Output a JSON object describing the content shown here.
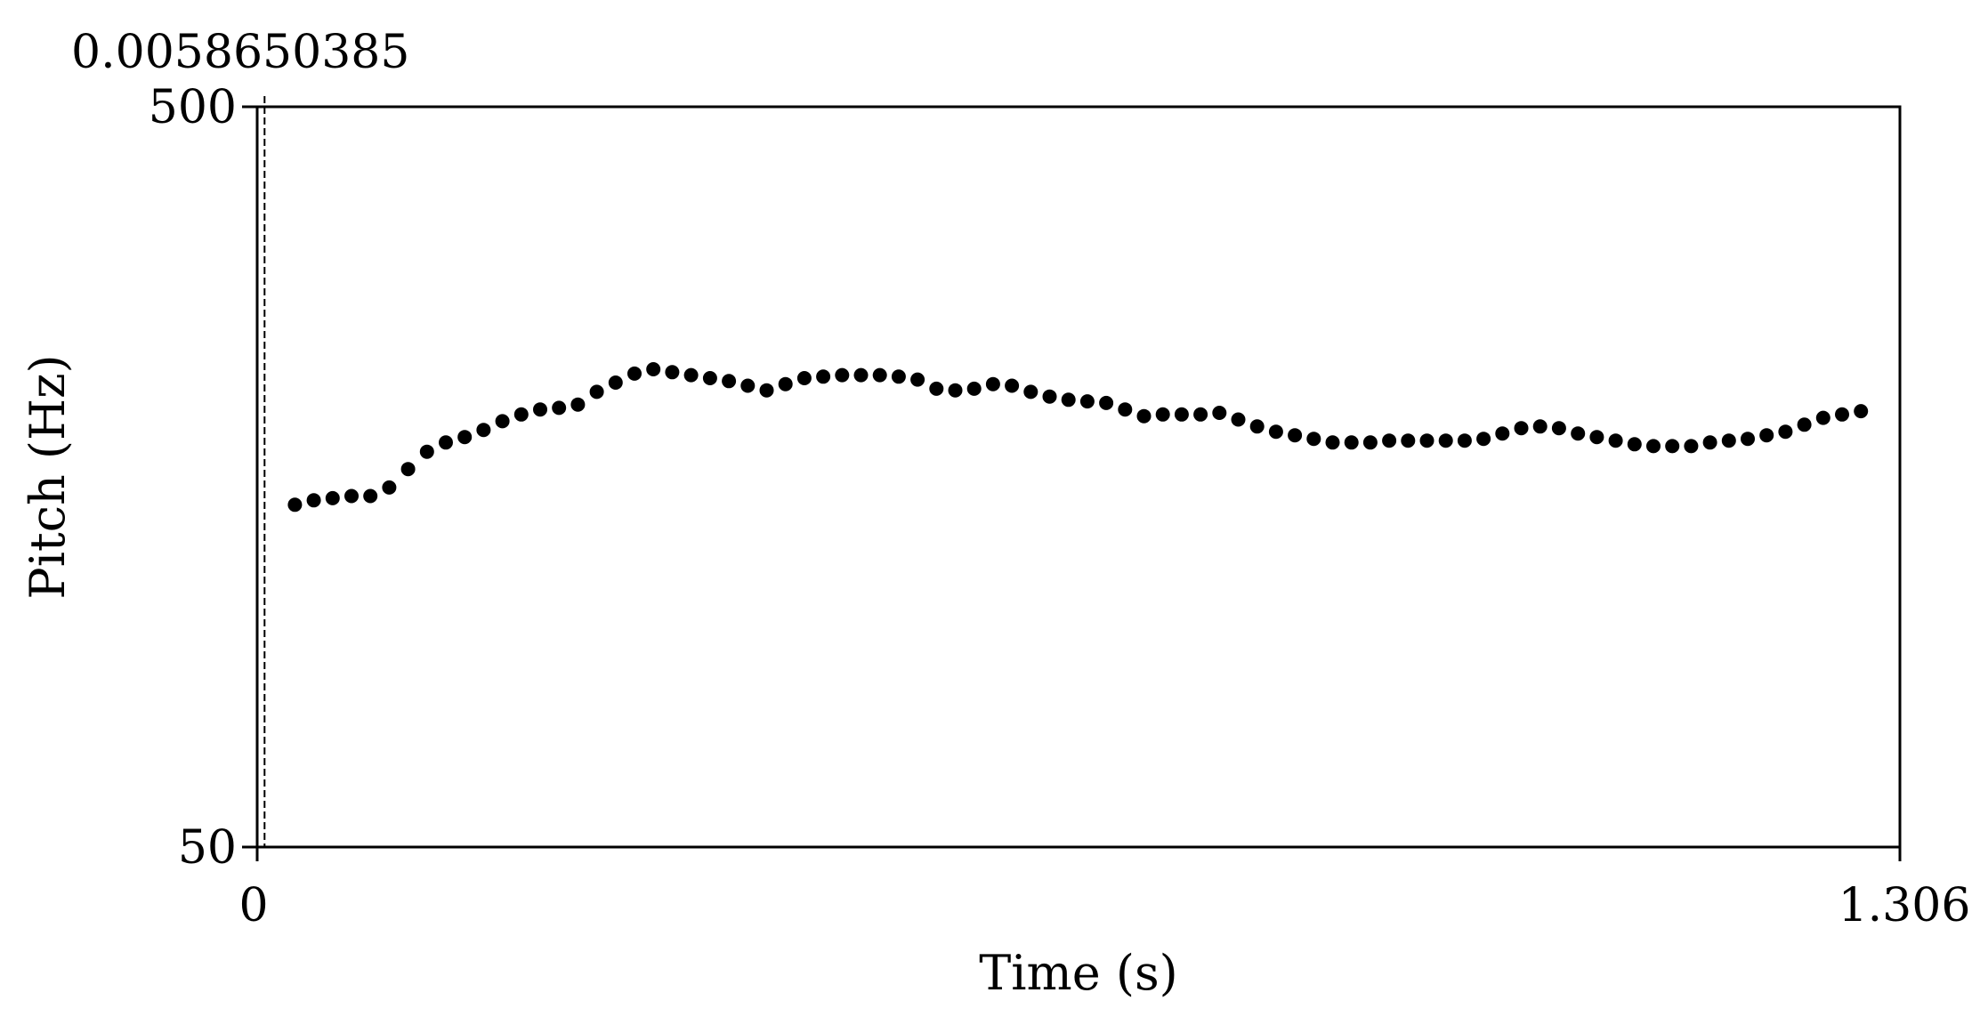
{
  "chart_data": {
    "type": "scatter",
    "title": "",
    "xlabel": "Time (s)",
    "ylabel": "Pitch (Hz)",
    "xlim": [
      0,
      1.306
    ],
    "ylim": [
      50,
      500
    ],
    "yscale": "log",
    "grid": false,
    "cursor": {
      "time": 0.0058650385,
      "label": "0.0058650385"
    },
    "x_tick_labels": {
      "min": "0",
      "max": "1.306"
    },
    "y_tick_labels": {
      "min": "50",
      "max": "500"
    },
    "series": [
      {
        "x": [
          0.03,
          0.045,
          0.06,
          0.075,
          0.09,
          0.105,
          0.12,
          0.135,
          0.15,
          0.165,
          0.18,
          0.195,
          0.21,
          0.225,
          0.24,
          0.255,
          0.27,
          0.285,
          0.3,
          0.315,
          0.33,
          0.345,
          0.36,
          0.375,
          0.39,
          0.405,
          0.42,
          0.435,
          0.45,
          0.465,
          0.48,
          0.495,
          0.51,
          0.525,
          0.54,
          0.555,
          0.57,
          0.585,
          0.6,
          0.615,
          0.63,
          0.645,
          0.66,
          0.675,
          0.69,
          0.705,
          0.72,
          0.735,
          0.75,
          0.765,
          0.78,
          0.795,
          0.81,
          0.825,
          0.84,
          0.855,
          0.87,
          0.885,
          0.9,
          0.915,
          0.93,
          0.945,
          0.96,
          0.975,
          0.99,
          1.005,
          1.02,
          1.035,
          1.05,
          1.065,
          1.08,
          1.095,
          1.11,
          1.125,
          1.14,
          1.155,
          1.17,
          1.185,
          1.2,
          1.215,
          1.23,
          1.245,
          1.26,
          1.275
        ],
        "y": [
          145,
          147,
          148,
          149,
          149,
          153,
          162,
          171,
          176,
          179,
          183,
          188,
          192,
          195,
          196,
          198,
          206,
          212,
          218,
          221,
          219,
          217,
          215,
          213,
          210,
          207,
          211,
          215,
          216,
          217,
          217,
          217,
          216,
          214,
          208,
          207,
          208,
          211,
          210,
          206,
          203,
          201,
          200,
          199,
          195,
          191,
          192,
          192,
          192,
          193,
          189,
          185,
          182,
          180,
          178,
          176,
          176,
          176,
          177,
          177,
          177,
          177,
          177,
          178,
          181,
          184,
          185,
          184,
          181,
          179,
          177,
          175,
          174,
          174,
          174,
          176,
          177,
          178,
          180,
          182,
          186,
          190,
          192,
          194
        ]
      }
    ]
  }
}
